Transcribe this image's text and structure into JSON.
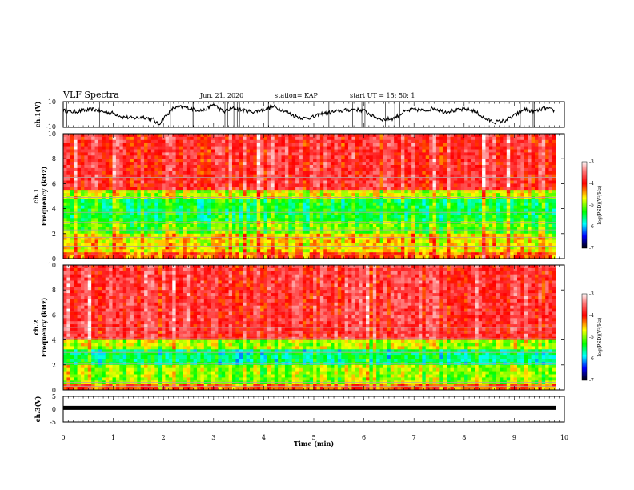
{
  "header": {
    "title": "VLF Spectra",
    "date": "Jun. 21, 2020",
    "station": "station= KAP",
    "start": "start  UT =   15: 50: 1"
  },
  "chart_data": [
    {
      "type": "line",
      "ylabel": "ch.1(V)",
      "ylim": [
        -10,
        10
      ],
      "yticks": [
        "10",
        "-10"
      ],
      "x": [
        0,
        0.2,
        0.4,
        0.6,
        0.8,
        1.0,
        1.2,
        1.4,
        1.6,
        1.8,
        1.9,
        2.0,
        2.2,
        2.4,
        2.6,
        2.8,
        3.0,
        3.2,
        3.4,
        3.6,
        3.8,
        4.0,
        4.2,
        4.4,
        4.6,
        4.8,
        5.0,
        5.2,
        5.4,
        5.6,
        5.8,
        6.0,
        6.2,
        6.4,
        6.6,
        6.8,
        7.0,
        7.2,
        7.4,
        7.6,
        7.8,
        8.0,
        8.2,
        8.4,
        8.6,
        8.8,
        9.0,
        9.2,
        9.4,
        9.6,
        9.8
      ],
      "y": [
        3,
        2,
        3,
        4,
        2,
        1,
        -2,
        -3,
        -2,
        -4,
        -8,
        -3,
        5,
        6,
        4,
        3,
        8,
        2,
        5,
        3,
        2,
        4,
        6,
        3,
        -1,
        -3,
        -2,
        1,
        2,
        3,
        4,
        3,
        -2,
        -4,
        -3,
        2,
        4,
        3,
        5,
        2,
        3,
        4,
        3,
        -3,
        -6,
        -5,
        -1,
        4,
        2,
        5,
        3
      ],
      "xlim": [
        0,
        10
      ]
    },
    {
      "type": "heatmap",
      "ylabel": "ch.1\nFrequency (kHz)",
      "ylim": [
        0,
        10
      ],
      "yticks": [
        "0",
        "2",
        "4",
        "6",
        "8",
        "10"
      ],
      "xlim": [
        0,
        9.83
      ],
      "bands": [
        {
          "from": 0,
          "to": 0.6,
          "level": -4.2
        },
        {
          "from": 0.6,
          "to": 2.0,
          "level": -4.6
        },
        {
          "from": 2.0,
          "to": 3.0,
          "level": -5.1
        },
        {
          "from": 3.0,
          "to": 4.8,
          "level": -5.4
        },
        {
          "from": 4.8,
          "to": 5.6,
          "level": -4.8
        },
        {
          "from": 5.6,
          "to": 10,
          "level": -3.8
        }
      ],
      "colorbar": {
        "label": "log(PSD)(V²/Hz)",
        "range": [
          -7,
          -3
        ],
        "ticks": [
          "-3",
          "-4",
          "-5",
          "-6",
          "-7"
        ]
      }
    },
    {
      "type": "heatmap",
      "ylabel": "ch.2\nFrequency (kHz)",
      "ylim": [
        0,
        10
      ],
      "yticks": [
        "0",
        "2",
        "4",
        "6",
        "8",
        "10"
      ],
      "xlim": [
        0,
        9.83
      ],
      "bands": [
        {
          "from": 0,
          "to": 0.5,
          "level": -4.3
        },
        {
          "from": 0.5,
          "to": 2.0,
          "level": -5.0
        },
        {
          "from": 2.0,
          "to": 3.2,
          "level": -5.6
        },
        {
          "from": 3.2,
          "to": 4.0,
          "level": -4.9
        },
        {
          "from": 4.0,
          "to": 10,
          "level": -3.8
        }
      ],
      "colorbar": {
        "label": "log(PSD)(V²/Hz)",
        "range": [
          -7,
          -3
        ],
        "ticks": [
          "-3",
          "-4",
          "-5",
          "-6",
          "-7"
        ]
      }
    },
    {
      "type": "line",
      "ylabel": "ch.3(V)",
      "ylim": [
        -5,
        5
      ],
      "yticks": [
        "5",
        "0",
        "-5"
      ],
      "x": [
        0,
        9.83
      ],
      "y": [
        0.5,
        0.5
      ],
      "xlim": [
        0,
        10
      ]
    }
  ],
  "xaxis": {
    "label": "Time (min)",
    "range": [
      0,
      10
    ],
    "ticks": [
      "0",
      "1",
      "2",
      "3",
      "4",
      "5",
      "6",
      "7",
      "8",
      "9",
      "10"
    ]
  }
}
